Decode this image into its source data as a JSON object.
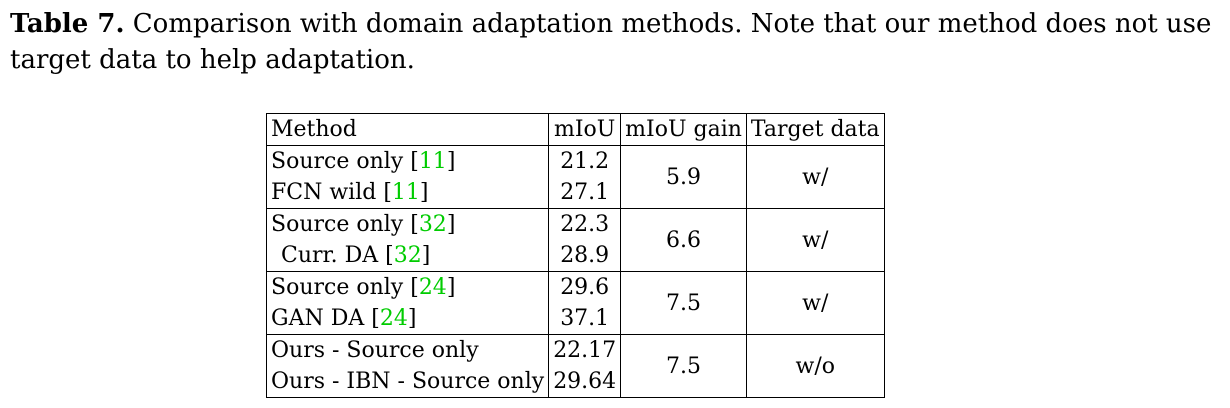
{
  "caption": {
    "label": "Table 7.",
    "text": "Comparison with domain adaptation methods. Note that our method does not use target data to help adaptation."
  },
  "table": {
    "headers": [
      "Method",
      "mIoU",
      "mIoU gain",
      "Target data"
    ],
    "groups": [
      {
        "rows": [
          {
            "method": "Source only ",
            "ref": "11",
            "miou": "21.2"
          },
          {
            "method": "FCN wild ",
            "ref": "11",
            "miou": "27.1"
          }
        ],
        "gain": "5.9",
        "gain_bold": false,
        "target": "w/",
        "target_bold": false
      },
      {
        "rows": [
          {
            "method": "Source only ",
            "ref": "32",
            "miou": "22.3"
          },
          {
            "method": "Curr. DA ",
            "ref": "32",
            "miou": "28.9",
            "indent": true
          }
        ],
        "gain": "6.6",
        "gain_bold": false,
        "target": "w/",
        "target_bold": false
      },
      {
        "rows": [
          {
            "method": "Source only ",
            "ref": "24",
            "miou": "29.6"
          },
          {
            "method": "GAN DA ",
            "ref": "24",
            "miou": "37.1"
          }
        ],
        "gain": "7.5",
        "gain_bold": true,
        "target": "w/",
        "target_bold": false
      },
      {
        "rows": [
          {
            "method": "Ours - Source only",
            "ref": "",
            "miou": "22.17"
          },
          {
            "method": "Ours - IBN - Source only",
            "ref": "",
            "miou": "29.64"
          }
        ],
        "gain": "7.5",
        "gain_bold": true,
        "target": "w/o",
        "target_bold": true
      }
    ]
  }
}
